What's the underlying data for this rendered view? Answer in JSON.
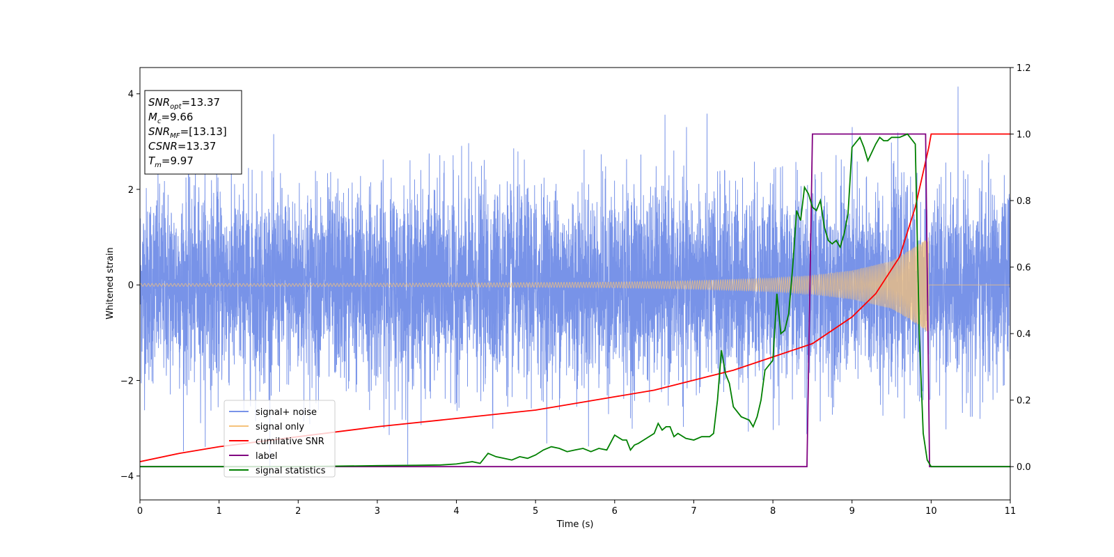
{
  "chart_data": {
    "type": "line",
    "xlabel": "Time (s)",
    "ylabel_left": "Whitened strain",
    "ylabel_right": "",
    "xlim": [
      0,
      11
    ],
    "ylim_left": [
      -4.5,
      4.55
    ],
    "ylim_right": [
      -0.1,
      1.2
    ],
    "x_ticks": [
      "0",
      "1",
      "2",
      "3",
      "4",
      "5",
      "6",
      "7",
      "8",
      "9",
      "10",
      "11"
    ],
    "y_ticks_left": [
      "4",
      "2",
      "0",
      "−2",
      "−4"
    ],
    "y_ticks_right": [
      "1.2",
      "1.0",
      "0.8",
      "0.6",
      "0.4",
      "0.2",
      "0.0"
    ],
    "grid": false,
    "legend_position": "lower-left",
    "annotation": {
      "lines": [
        {
          "base": "SNR",
          "sub": "opt",
          "value": "=13.37"
        },
        {
          "base": "M",
          "sub": "c",
          "value": "=9.66"
        },
        {
          "base": "SNR",
          "sub": "MF",
          "value": "=[13.13]"
        },
        {
          "base": "CSNR",
          "sub": "",
          "value": "=13.37"
        },
        {
          "base": "T",
          "sub": "m",
          "value": "=9.97"
        }
      ]
    },
    "series": [
      {
        "name": "signal+ noise",
        "axis": "left",
        "color": "#7893e8",
        "kind": "noise",
        "description_values": {
          "typical_amplitude": 1.0,
          "peak_max": 4.15,
          "peak_min": -4.05,
          "t_end": 11
        }
      },
      {
        "name": "signal only",
        "axis": "left",
        "color": "#f6c27a",
        "kind": "chirp",
        "amplitude_points": {
          "t": [
            0,
            2,
            4,
            6,
            7,
            8,
            8.5,
            9,
            9.5,
            9.8,
            9.97
          ],
          "amp": [
            0.03,
            0.03,
            0.04,
            0.06,
            0.09,
            0.14,
            0.2,
            0.3,
            0.5,
            0.8,
            1.0
          ]
        },
        "merger_time": 9.97
      },
      {
        "name": "cumilative SNR",
        "axis": "right",
        "color": "#ff0000",
        "x": [
          0,
          0.5,
          1,
          2,
          3,
          4,
          5,
          6,
          6.5,
          7,
          7.5,
          8,
          8.5,
          9,
          9.3,
          9.6,
          9.8,
          9.97,
          10.0,
          11
        ],
        "y": [
          0.015,
          0.04,
          0.06,
          0.09,
          0.12,
          0.145,
          0.17,
          0.21,
          0.23,
          0.26,
          0.29,
          0.33,
          0.37,
          0.45,
          0.52,
          0.63,
          0.78,
          0.96,
          1.0,
          1.0
        ]
      },
      {
        "name": "label",
        "axis": "right",
        "color": "#800080",
        "x": [
          0,
          8.43,
          8.5,
          9.93,
          9.98,
          11
        ],
        "y": [
          0.0,
          0.0,
          1.0,
          1.0,
          0.0,
          0.0
        ]
      },
      {
        "name": "signal statistics",
        "axis": "right",
        "color": "#008000",
        "x": [
          0,
          1,
          2,
          3,
          3.5,
          3.8,
          4.0,
          4.2,
          4.3,
          4.4,
          4.5,
          4.6,
          4.7,
          4.8,
          4.9,
          5.0,
          5.1,
          5.2,
          5.3,
          5.4,
          5.5,
          5.6,
          5.7,
          5.8,
          5.9,
          6.0,
          6.1,
          6.15,
          6.2,
          6.25,
          6.3,
          6.4,
          6.5,
          6.55,
          6.6,
          6.65,
          6.7,
          6.75,
          6.8,
          6.9,
          7.0,
          7.1,
          7.2,
          7.25,
          7.3,
          7.35,
          7.4,
          7.45,
          7.5,
          7.6,
          7.7,
          7.75,
          7.8,
          7.85,
          7.9,
          8.0,
          8.05,
          8.1,
          8.15,
          8.2,
          8.25,
          8.3,
          8.35,
          8.4,
          8.45,
          8.5,
          8.55,
          8.6,
          8.65,
          8.7,
          8.75,
          8.8,
          8.85,
          8.9,
          8.95,
          9.0,
          9.1,
          9.15,
          9.2,
          9.3,
          9.35,
          9.4,
          9.45,
          9.5,
          9.6,
          9.7,
          9.8,
          9.85,
          9.9,
          9.95,
          10.0,
          10.5,
          11
        ],
        "y": [
          0.0,
          0.0,
          0.0,
          0.003,
          0.004,
          0.005,
          0.008,
          0.015,
          0.01,
          0.04,
          0.03,
          0.025,
          0.02,
          0.03,
          0.025,
          0.035,
          0.05,
          0.06,
          0.055,
          0.045,
          0.05,
          0.055,
          0.045,
          0.055,
          0.05,
          0.095,
          0.08,
          0.08,
          0.05,
          0.065,
          0.07,
          0.085,
          0.1,
          0.13,
          0.11,
          0.12,
          0.12,
          0.09,
          0.1,
          0.085,
          0.08,
          0.09,
          0.09,
          0.1,
          0.2,
          0.35,
          0.28,
          0.25,
          0.18,
          0.15,
          0.14,
          0.12,
          0.15,
          0.2,
          0.29,
          0.32,
          0.52,
          0.4,
          0.41,
          0.46,
          0.6,
          0.77,
          0.74,
          0.84,
          0.82,
          0.78,
          0.77,
          0.8,
          0.72,
          0.68,
          0.67,
          0.68,
          0.66,
          0.7,
          0.76,
          0.96,
          0.99,
          0.96,
          0.92,
          0.97,
          0.99,
          0.98,
          0.98,
          0.99,
          0.99,
          1.0,
          0.97,
          0.4,
          0.1,
          0.02,
          0.0,
          0.0,
          0.0
        ]
      }
    ]
  }
}
